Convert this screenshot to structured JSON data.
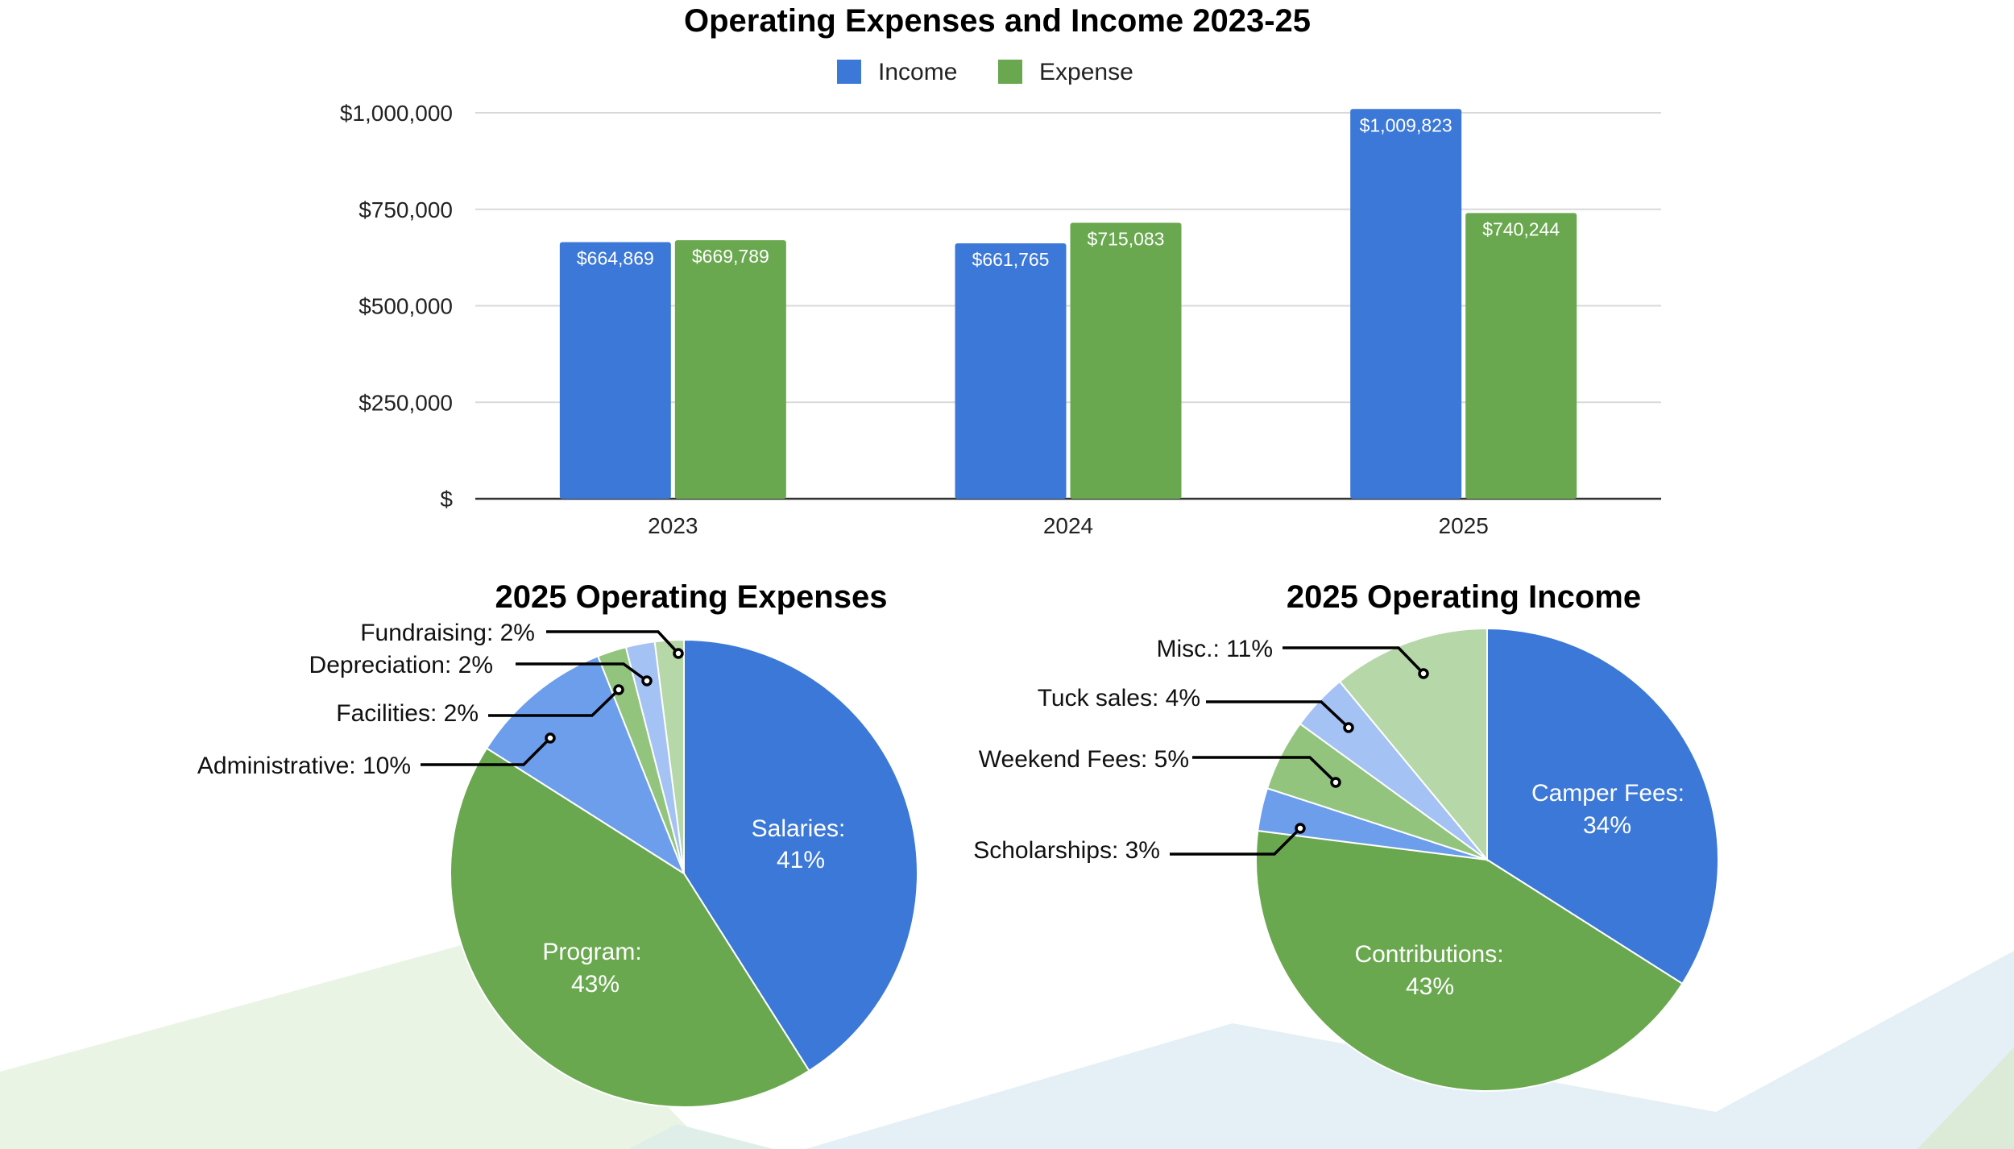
{
  "colors": {
    "income": "#3c78d8",
    "expense": "#6aa84f",
    "light_blue": "#6d9eeb",
    "pale_blue": "#a4c2f4",
    "mid_green": "#93c47d",
    "pale_green": "#b6d7a8",
    "grid": "#d9d9d9",
    "axis": "#333333",
    "bg_green": "#eaf4e4",
    "bg_blue": "#e4f0f5"
  },
  "chart_data": [
    {
      "type": "bar",
      "title": "Operating Expenses and Income 2023-25",
      "categories": [
        "2023",
        "2024",
        "2025"
      ],
      "series": [
        {
          "name": "Income",
          "values": [
            664869,
            661765,
            1009823
          ],
          "labels": [
            "$664,869",
            "$661,765",
            "$1,009,823"
          ]
        },
        {
          "name": "Expense",
          "values": [
            669789,
            715083,
            740244
          ],
          "labels": [
            "$669,789",
            "$715,083",
            "$740,244"
          ]
        }
      ],
      "ylim": [
        0,
        1000000
      ],
      "yticks": [
        0,
        250000,
        500000,
        750000,
        1000000
      ],
      "ytick_labels": [
        "$",
        "$250,000",
        "$500,000",
        "$750,000",
        "$1,000,000"
      ],
      "legend": "top-center",
      "grid": true
    },
    {
      "type": "pie",
      "title": "2025 Operating Expenses",
      "slices": [
        {
          "label": "Salaries",
          "value": 41,
          "display": "41%"
        },
        {
          "label": "Program",
          "value": 43,
          "display": "43%"
        },
        {
          "label": "Administrative",
          "value": 10,
          "display": "Administrative: 10%"
        },
        {
          "label": "Facilities",
          "value": 2,
          "display": "Facilities: 2%"
        },
        {
          "label": "Depreciation",
          "value": 2,
          "display": "Depreciation: 2%"
        },
        {
          "label": "Fundraising",
          "value": 2,
          "display": "Fundraising: 2%"
        }
      ]
    },
    {
      "type": "pie",
      "title": "2025 Operating Income",
      "slices": [
        {
          "label": "Camper Fees",
          "value": 34,
          "display": "34%"
        },
        {
          "label": "Contributions",
          "value": 43,
          "display": "43%"
        },
        {
          "label": "Scholarships",
          "value": 3,
          "display": "Scholarships: 3%"
        },
        {
          "label": "Weekend Fees",
          "value": 5,
          "display": "Weekend Fees: 5%"
        },
        {
          "label": "Tuck sales",
          "value": 4,
          "display": "Tuck sales: 4%"
        },
        {
          "label": "Misc.",
          "value": 11,
          "display": "Misc.: 11%"
        }
      ]
    }
  ]
}
